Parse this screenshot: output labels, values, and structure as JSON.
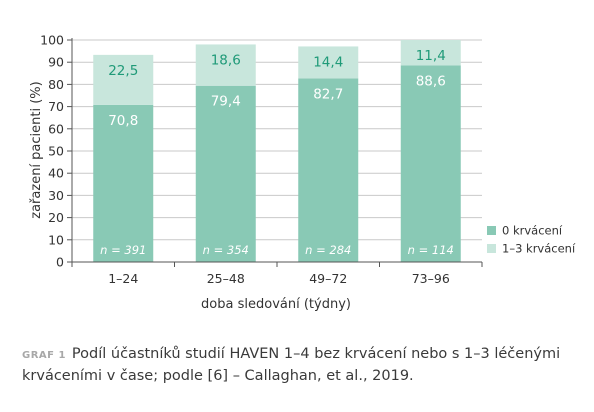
{
  "chart_data": {
    "type": "bar",
    "stacked": true,
    "categories": [
      "1–24",
      "25–48",
      "49–72",
      "73–96"
    ],
    "series": [
      {
        "name": "0 krvácení",
        "values": [
          70.8,
          79.4,
          82.7,
          88.6
        ],
        "labels": [
          "70,8",
          "79,4",
          "82,7",
          "88,6"
        ],
        "color": "#89c9b5"
      },
      {
        "name": "1–3 krvácení",
        "values": [
          22.5,
          18.6,
          14.4,
          11.4
        ],
        "labels": [
          "22,5",
          "18,6",
          "14,4",
          "11,4"
        ],
        "color": "#c8e6dc"
      }
    ],
    "n_labels": [
      "n = 391",
      "n = 354",
      "n = 284",
      "n = 114"
    ],
    "xlabel": "doba sledování (týdny)",
    "ylabel": "zařazení pacienti (%)",
    "ylim": [
      0,
      100
    ],
    "yticks": [
      0,
      10,
      20,
      30,
      40,
      50,
      60,
      70,
      80,
      90,
      100
    ],
    "grid": true,
    "legend_position": "right-bottom"
  },
  "caption": {
    "tag": "GRAF 1",
    "text": "Podíl účastníků studií HAVEN 1–4 bez krvácení nebo s 1–3 léčenými krváceními v čase; podle [6] – Callaghan, et al., 2019."
  },
  "colors": {
    "grid": "#c9c9c9",
    "axis": "#555555",
    "value_top": "#1f9a78"
  }
}
